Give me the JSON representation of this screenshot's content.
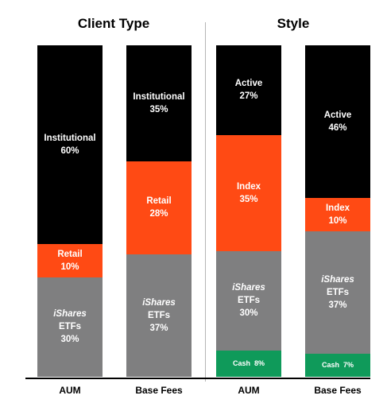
{
  "header_fragment": "",
  "panels": [
    {
      "title": "Client Type"
    },
    {
      "title": "Style"
    }
  ],
  "colors": {
    "black": "#000000",
    "orange": "#ff4a14",
    "gray": "#7f7f80",
    "green": "#0f9a5a"
  },
  "chart_data": {
    "type": "bar",
    "stacked": true,
    "unit": "%",
    "panels": [
      {
        "title": "Client Type",
        "bars": [
          {
            "label": "AUM",
            "segments": [
              {
                "name": "Institutional",
                "value": 60,
                "color": "black"
              },
              {
                "name": "Retail",
                "value": 10,
                "color": "orange"
              },
              {
                "name": "iShares ETFs",
                "name_italic": "iShares",
                "name_rest": "ETFs",
                "value": 30,
                "color": "gray"
              }
            ]
          },
          {
            "label": "Base Fees",
            "segments": [
              {
                "name": "Institutional",
                "value": 35,
                "color": "black"
              },
              {
                "name": "Retail",
                "value": 28,
                "color": "orange"
              },
              {
                "name": "iShares ETFs",
                "name_italic": "iShares",
                "name_rest": "ETFs",
                "value": 37,
                "color": "gray"
              }
            ]
          }
        ]
      },
      {
        "title": "Style",
        "bars": [
          {
            "label": "AUM",
            "segments": [
              {
                "name": "Active",
                "value": 27,
                "color": "black"
              },
              {
                "name": "Index",
                "value": 35,
                "color": "orange"
              },
              {
                "name": "iShares ETFs",
                "name_italic": "iShares",
                "name_rest": "ETFs",
                "value": 30,
                "color": "gray"
              },
              {
                "name": "Cash",
                "value": 8,
                "color": "green",
                "inline": true
              }
            ]
          },
          {
            "label": "Base Fees",
            "segments": [
              {
                "name": "Active",
                "value": 46,
                "color": "black"
              },
              {
                "name": "Index",
                "value": 10,
                "color": "orange"
              },
              {
                "name": "iShares ETFs",
                "name_italic": "iShares",
                "name_rest": "ETFs",
                "value": 37,
                "color": "gray"
              },
              {
                "name": "Cash",
                "value": 7,
                "color": "green",
                "inline": true
              }
            ]
          }
        ]
      }
    ]
  }
}
